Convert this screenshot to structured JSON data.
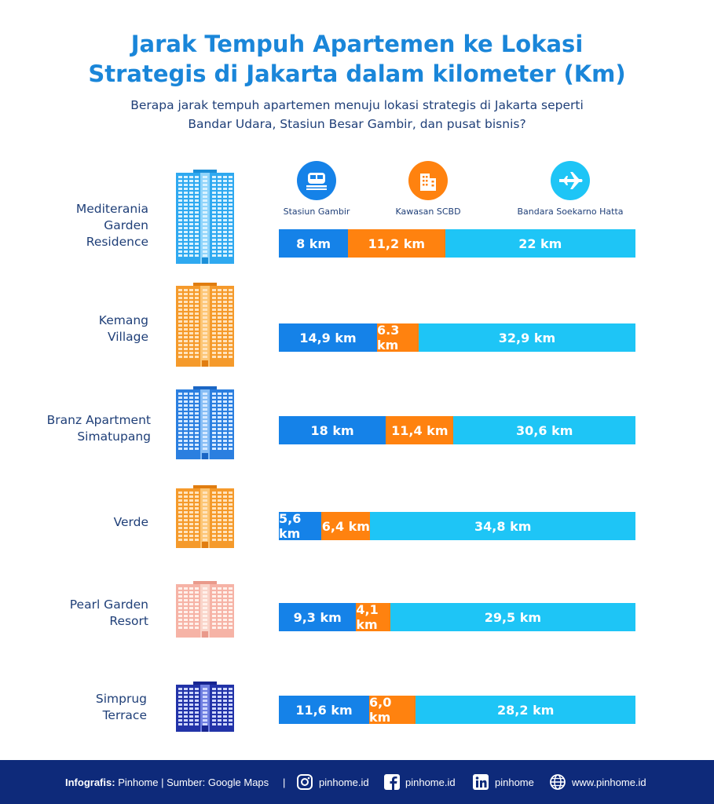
{
  "title_line1": "Jarak Tempuh Apartemen ke Lokasi",
  "title_line2": "Strategis di Jakarta dalam kilometer (Km)",
  "subtitle_line1": "Berapa jarak tempuh apartemen menuju lokasi strategis di Jakarta seperti",
  "subtitle_line2": "Bandar Udara, Stasiun Besar Gambir, dan pusat bisnis?",
  "colors": {
    "gambir": "#1582e8",
    "scbd": "#ff820f",
    "airport": "#1ec5f6",
    "title": "#1a86d9",
    "text": "#1f3f78",
    "footer": "#0e2a7a"
  },
  "columns": [
    {
      "label": "Stasiun Gambir",
      "icon": "train-icon"
    },
    {
      "label": "Kawasan SCBD",
      "icon": "building-icon"
    },
    {
      "label": "Bandara Soekarno Hatta",
      "icon": "airplane-icon"
    }
  ],
  "apartments": [
    {
      "name_lines": [
        "Mediterania",
        "Garden",
        "Residence"
      ],
      "building_color": "light-blue"
    },
    {
      "name_lines": [
        "Kemang",
        "Village"
      ],
      "building_color": "orange"
    },
    {
      "name_lines": [
        "Branz Apartment",
        "Simatupang"
      ],
      "building_color": "blue"
    },
    {
      "name_lines": [
        "Verde"
      ],
      "building_color": "orange"
    },
    {
      "name_lines": [
        "Pearl Garden",
        "Resort"
      ],
      "building_color": "pink"
    },
    {
      "name_lines": [
        "Simprug",
        "Terrace"
      ],
      "building_color": "navy"
    }
  ],
  "chart_data": {
    "type": "bar",
    "orientation": "horizontal",
    "stacked": true,
    "categories": [
      "Mediterania Garden Residence",
      "Kemang Village",
      "Branz Apartment Simatupang",
      "Verde",
      "Pearl Garden Resort",
      "Simprug Terrace"
    ],
    "series": [
      {
        "name": "Stasiun Gambir",
        "values": [
          8,
          14.9,
          18,
          5.6,
          9.3,
          11.6
        ],
        "labels": [
          "8 km",
          "14,9 km",
          "18 km",
          "5,6 km",
          "9,3 km",
          "11,6 km"
        ]
      },
      {
        "name": "Kawasan SCBD",
        "values": [
          11.2,
          6.3,
          11.4,
          6.4,
          4.1,
          6.0
        ],
        "labels": [
          "11,2 km",
          "6.3 km",
          "11,4 km",
          "6,4 km",
          "4,1 km",
          "6,0 km"
        ]
      },
      {
        "name": "Bandara Soekarno Hatta",
        "values": [
          22,
          32.9,
          30.6,
          34.8,
          29.5,
          28.2
        ],
        "labels": [
          "22 km",
          "32,9 km",
          "30,6 km",
          "34,8 km",
          "29,5 km",
          "28,2 km"
        ]
      }
    ]
  },
  "footer": {
    "credit_label": "Infografis:",
    "credit_text": "Pinhome | Sumber: Google Maps",
    "separator": "|",
    "instagram": "pinhome.id",
    "facebook": "pinhome.id",
    "linkedin": "pinhome",
    "website": "www.pinhome.id"
  }
}
